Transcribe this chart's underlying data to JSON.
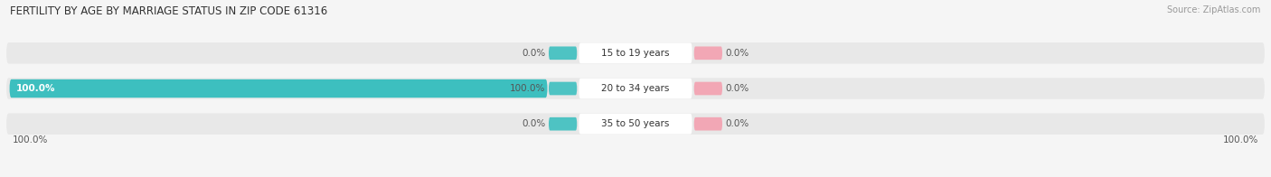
{
  "title": "FERTILITY BY AGE BY MARRIAGE STATUS IN ZIP CODE 61316",
  "source": "Source: ZipAtlas.com",
  "categories": [
    "15 to 19 years",
    "20 to 34 years",
    "35 to 50 years"
  ],
  "married_values": [
    0.0,
    100.0,
    0.0
  ],
  "unmarried_values": [
    0.0,
    0.0,
    0.0
  ],
  "married_color": "#3dbfbf",
  "unmarried_color": "#f4a0b0",
  "bg_bar_color": "#e8e8e8",
  "label_bg_color": "#ffffff",
  "title_fontsize": 8.5,
  "source_fontsize": 7,
  "label_fontsize": 7.5,
  "value_fontsize": 7.5,
  "axis_label_left": "100.0%",
  "axis_label_right": "100.0%",
  "xlim": [
    -100,
    100
  ],
  "background_color": "#f5f5f5"
}
